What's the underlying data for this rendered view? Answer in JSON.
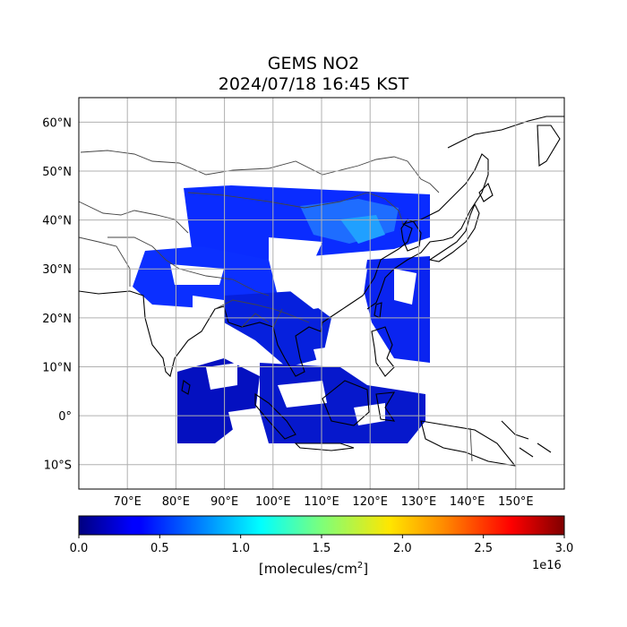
{
  "title": "GEMS NO2",
  "subtitle": "2024/07/18 16:45 KST",
  "colorbar": {
    "label_prefix": "[molecules/cm",
    "label_sup": "2",
    "label_suffix": "]",
    "multiplier": "1e16",
    "ticks": [
      "0.0",
      "0.5",
      "1.0",
      "1.5",
      "2.0",
      "2.5",
      "3.0"
    ],
    "colormap": "jet",
    "range": [
      0,
      3.0
    ]
  },
  "map": {
    "lon_range": [
      60,
      160
    ],
    "lat_range": [
      -15,
      65
    ],
    "lon_ticks": [
      {
        "v": 70,
        "label": "70°E"
      },
      {
        "v": 80,
        "label": "80°E"
      },
      {
        "v": 90,
        "label": "90°E"
      },
      {
        "v": 100,
        "label": "100°E"
      },
      {
        "v": 110,
        "label": "110°E"
      },
      {
        "v": 120,
        "label": "120°E"
      },
      {
        "v": 130,
        "label": "130°E"
      },
      {
        "v": 140,
        "label": "140°E"
      },
      {
        "v": 150,
        "label": "150°E"
      }
    ],
    "lat_ticks": [
      {
        "v": 60,
        "label": "60°N"
      },
      {
        "v": 50,
        "label": "50°N"
      },
      {
        "v": 40,
        "label": "40°N"
      },
      {
        "v": 30,
        "label": "30°N"
      },
      {
        "v": 20,
        "label": "20°N"
      },
      {
        "v": 10,
        "label": "10°N"
      },
      {
        "v": 0,
        "label": "0°"
      },
      {
        "v": -10,
        "label": "10°S"
      }
    ],
    "grid": true
  },
  "colors": {
    "coastline": "#000000",
    "border": "#444444",
    "grid": "#b0b0b0"
  }
}
